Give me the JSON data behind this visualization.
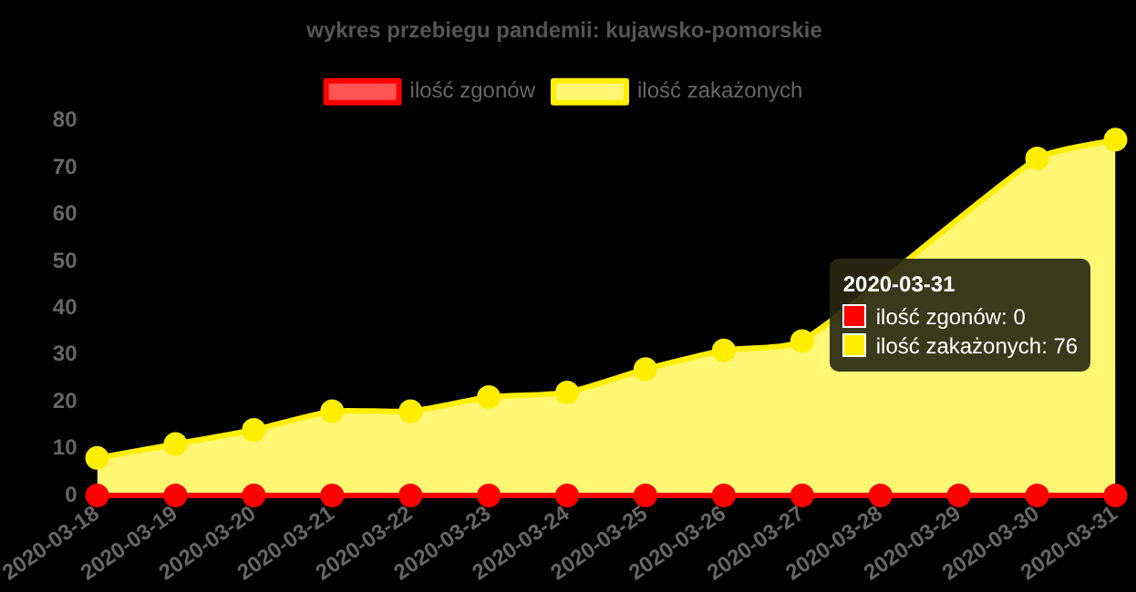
{
  "chart_data": {
    "type": "area",
    "title": "wykres przebiegu pandemii: kujawsko-pomorskie",
    "categories": [
      "2020-03-18",
      "2020-03-19",
      "2020-03-20",
      "2020-03-21",
      "2020-03-22",
      "2020-03-23",
      "2020-03-24",
      "2020-03-25",
      "2020-03-26",
      "2020-03-27",
      "2020-03-28",
      "2020-03-29",
      "2020-03-30",
      "2020-03-31"
    ],
    "series": [
      {
        "name": "ilość zgonów",
        "type": "line",
        "color": "#ff0000",
        "values": [
          0,
          0,
          0,
          0,
          0,
          0,
          0,
          0,
          0,
          0,
          0,
          0,
          0,
          0
        ]
      },
      {
        "name": "ilość zakażonych",
        "color": "#ffee00",
        "values": [
          8,
          11,
          14,
          18,
          18,
          21,
          22,
          27,
          31,
          33,
          null,
          null,
          72,
          76
        ]
      }
    ],
    "ylim": [
      0,
      80
    ],
    "yticks": [
      0,
      10,
      20,
      30,
      40,
      50,
      60,
      70,
      80
    ],
    "legend": "top",
    "marker": "circle",
    "line_style": "solid",
    "annotations": [
      "2020-03-31",
      "ilość zgonów: 0",
      "ilość zakażonych: 76"
    ]
  }
}
